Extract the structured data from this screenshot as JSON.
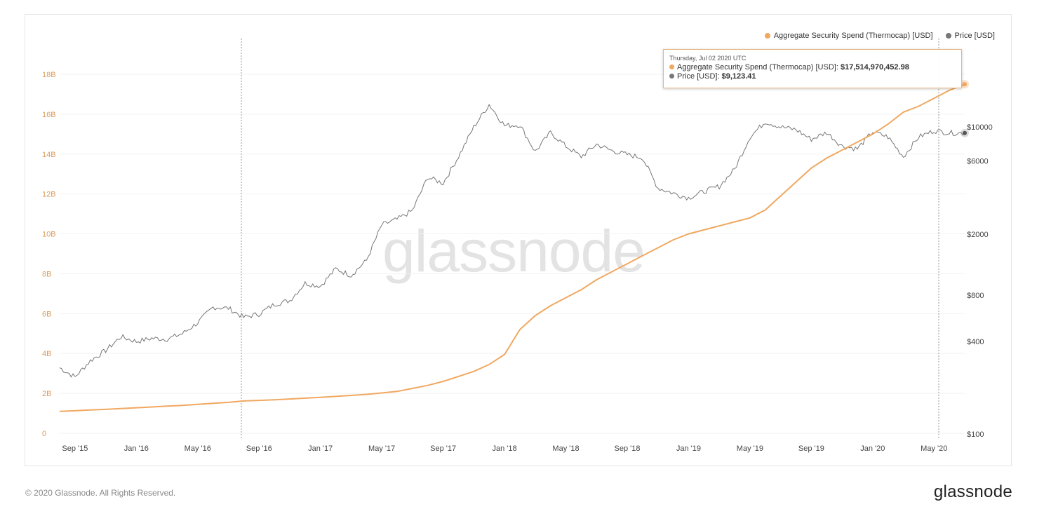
{
  "legend": {
    "thermocap": "Aggregate Security Spend (Thermocap) [USD]",
    "price": "Price [USD]"
  },
  "tooltip": {
    "date": "Thursday, Jul 02 2020 UTC",
    "thermocap_label": "Aggregate Security Spend (Thermocap) [USD]: ",
    "thermocap_value": "$17,514,970,452.98",
    "price_label": "Price [USD]: ",
    "price_value": "$9,123.41"
  },
  "watermark": "glassnode",
  "footer": "© 2020 Glassnode. All Rights Reserved.",
  "logo": "glassnode",
  "chart_data": {
    "type": "line",
    "colors": {
      "thermocap": "#f0a860",
      "price": "#666666"
    },
    "x_ticks": [
      "Sep '15",
      "Jan '16",
      "May '16",
      "Sep '16",
      "Jan '17",
      "May '17",
      "Sep '17",
      "Jan '18",
      "May '18",
      "Sep '18",
      "Jan '19",
      "May '19",
      "Sep '19",
      "Jan '20",
      "May '20"
    ],
    "left_axis": {
      "ticks": [
        "0",
        "2B",
        "4B",
        "6B",
        "8B",
        "10B",
        "12B",
        "14B",
        "16B",
        "18B"
      ],
      "range_billions": [
        0,
        18
      ]
    },
    "right_axis": {
      "scale": "log",
      "ticks": [
        {
          "label": "$100",
          "v": 100
        },
        {
          "label": "$400",
          "v": 400
        },
        {
          "label": "$800",
          "v": 800
        },
        {
          "label": "$2000",
          "v": 2000
        },
        {
          "label": "$6000",
          "v": 6000
        },
        {
          "label": "$10000",
          "v": 10000
        }
      ],
      "range": [
        100,
        10000
      ]
    },
    "x_months_from_aug_2015": [
      0,
      1,
      2,
      3,
      4,
      5,
      6,
      7,
      8,
      9,
      10,
      11,
      12,
      13,
      14,
      15,
      16,
      17,
      18,
      19,
      20,
      21,
      22,
      23,
      24,
      25,
      26,
      27,
      28,
      29,
      30,
      31,
      32,
      33,
      34,
      35,
      36,
      37,
      38,
      39,
      40,
      41,
      42,
      43,
      44,
      45,
      46,
      47,
      48,
      49,
      50,
      51,
      52,
      53,
      54,
      55,
      56,
      57,
      58,
      59
    ],
    "series": [
      {
        "name": "Aggregate Security Spend (Thermocap) [USD] (billions)",
        "values": [
          1.1,
          1.13,
          1.17,
          1.2,
          1.24,
          1.28,
          1.32,
          1.36,
          1.4,
          1.45,
          1.5,
          1.55,
          1.62,
          1.65,
          1.68,
          1.72,
          1.76,
          1.8,
          1.85,
          1.9,
          1.95,
          2.02,
          2.1,
          2.25,
          2.4,
          2.6,
          2.85,
          3.1,
          3.45,
          3.95,
          5.2,
          5.9,
          6.4,
          6.8,
          7.2,
          7.7,
          8.1,
          8.5,
          8.9,
          9.3,
          9.7,
          10.0,
          10.2,
          10.4,
          10.6,
          10.8,
          11.2,
          11.9,
          12.6,
          13.3,
          13.8,
          14.2,
          14.6,
          15.0,
          15.5,
          16.1,
          16.4,
          16.8,
          17.2,
          17.5
        ]
      },
      {
        "name": "Price [USD]",
        "values": [
          270,
          235,
          300,
          350,
          430,
          400,
          420,
          415,
          450,
          530,
          670,
          660,
          575,
          605,
          700,
          740,
          960,
          920,
          1190,
          1080,
          1350,
          2300,
          2500,
          2850,
          4700,
          4300,
          6400,
          10000,
          14000,
          10200,
          10300,
          6900,
          9200,
          7500,
          6400,
          7700,
          7000,
          6600,
          6300,
          4000,
          3700,
          3450,
          3800,
          4100,
          5300,
          8600,
          10800,
          10000,
          9600,
          8300,
          9200,
          7500,
          7200,
          9300,
          8600,
          6400,
          8600,
          9450,
          9150,
          9123
        ]
      }
    ],
    "highlight": {
      "date": "2020-07-02",
      "thermocap": 17514970452.98,
      "price": 9123.41
    }
  }
}
